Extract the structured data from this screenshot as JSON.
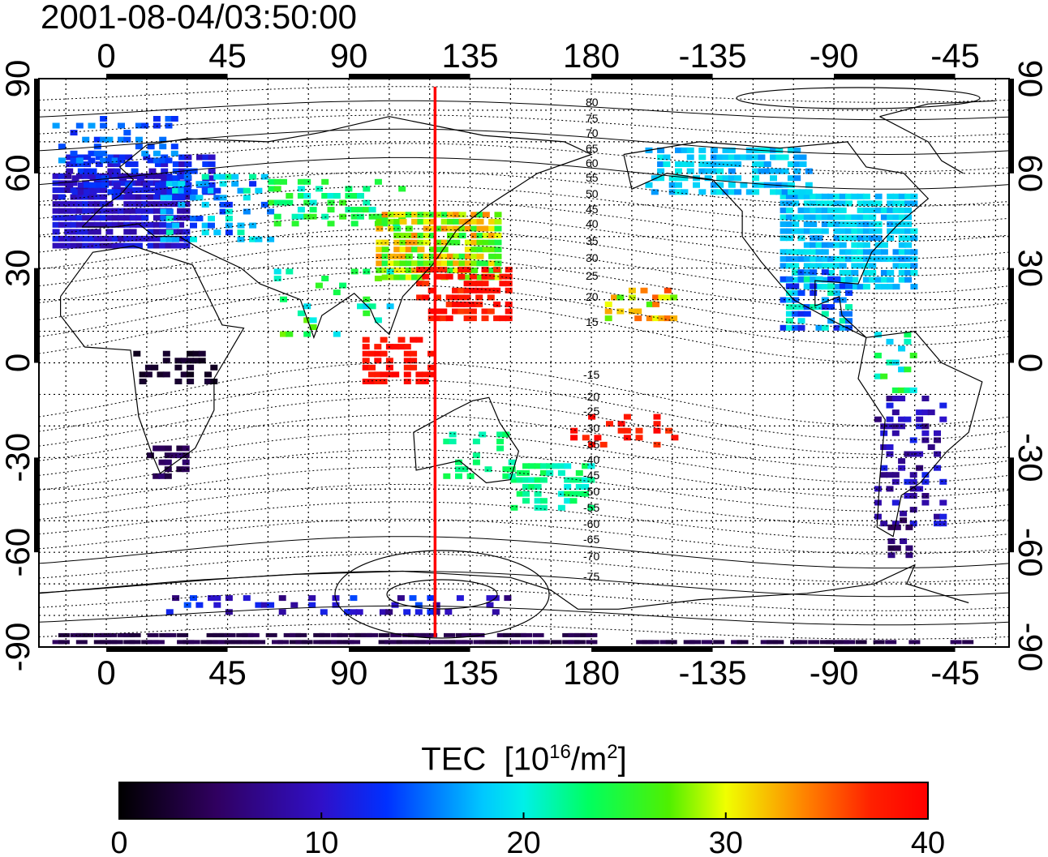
{
  "timestamp": "2001-08-04/03:50:00",
  "map": {
    "lon_ticks": [
      "0",
      "45",
      "90",
      "135",
      "180",
      "-135",
      "-90",
      "-45"
    ],
    "lat_ticks": [
      "90",
      "60",
      "30",
      "0",
      "-30",
      "-60",
      "-90"
    ],
    "red_meridian_lon": 122,
    "mlat_labels_north": [
      "80",
      "75",
      "70",
      "65",
      "60",
      "55",
      "50",
      "45",
      "40",
      "35",
      "30",
      "25",
      "20",
      "15"
    ],
    "mlat_labels_south": [
      "-15",
      "-20",
      "-25",
      "-30",
      "-35",
      "-40",
      "-45",
      "-50",
      "-55",
      "-60",
      "-65",
      "-70",
      "-75"
    ]
  },
  "colorbar": {
    "title_main": "TEC",
    "title_unit_prefix": "[10",
    "title_unit_exp": "16",
    "title_unit_mid": "/m",
    "title_unit_exp2": "2",
    "title_unit_suffix": "]",
    "tick_labels": [
      "0",
      "10",
      "20",
      "30",
      "40"
    ],
    "min": 0,
    "max": 40
  },
  "colors": {
    "meridian": "#ff0000"
  }
}
